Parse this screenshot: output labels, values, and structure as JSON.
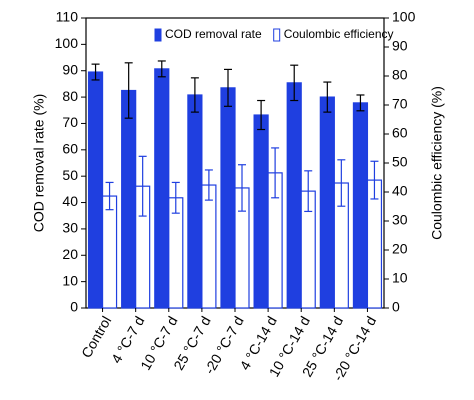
{
  "chart_data": {
    "type": "bar",
    "categories": [
      "Control",
      "4 °C-7 d",
      "10 °C-7 d",
      "25 °C-7 d",
      "-20 °C-7 d",
      "4 °C-14 d",
      "10 °C-14 d",
      "25 °C-14 d",
      "-20 °C-14 d"
    ],
    "series": [
      {
        "name": "COD removal rate",
        "color": "#1f3fe0",
        "error_color": "#000000",
        "values": [
          89.5,
          82.5,
          90.7,
          80.8,
          83.5,
          73.2,
          85.4,
          80,
          77.8
        ],
        "errors": [
          3,
          10.5,
          3,
          6.5,
          7,
          5.5,
          6.7,
          5.7,
          3
        ]
      },
      {
        "name": "Coulombic efficiency",
        "color": "#1f3fe0",
        "axis": "y2",
        "hollow": true,
        "values": [
          38.6,
          42,
          38,
          42.4,
          41.4,
          46.6,
          40.3,
          43.1,
          44.1
        ],
        "errors": [
          4.7,
          10.3,
          5.3,
          5.2,
          8,
          8.6,
          7,
          8,
          6.5
        ]
      }
    ],
    "ylabel": "COD removal rate (%)",
    "y2label": "Coulombic efficiency (%)",
    "ylim": [
      0,
      110
    ],
    "yticks": [
      0,
      10,
      20,
      30,
      40,
      50,
      60,
      70,
      80,
      90,
      100,
      110
    ],
    "y2lim": [
      0,
      100
    ],
    "y2ticks": [
      0,
      10,
      20,
      30,
      40,
      50,
      60,
      70,
      80,
      90,
      100
    ],
    "legend": "upper center"
  }
}
